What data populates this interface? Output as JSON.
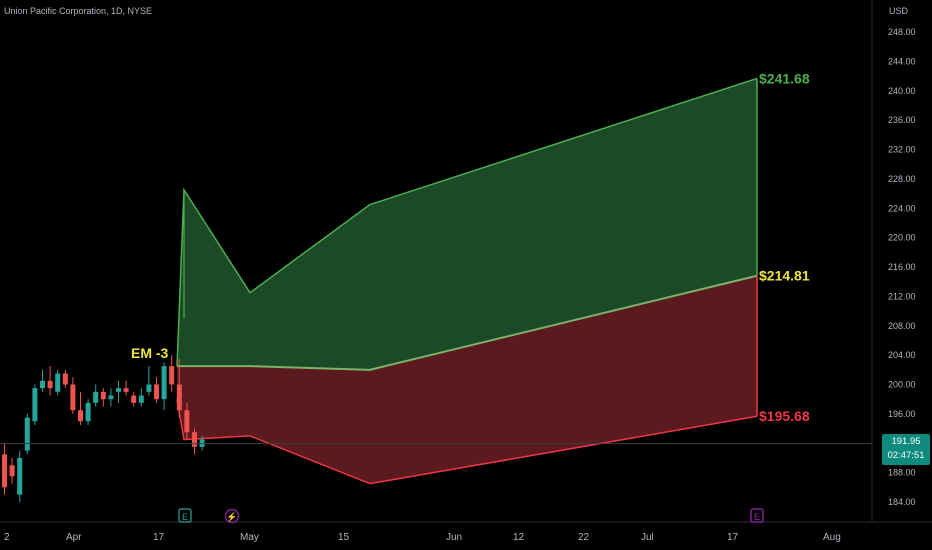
{
  "header": {
    "title": "Union Pacific Corporation, 1D, NYSE",
    "currency": "USD"
  },
  "price_axis": {
    "ticks": [
      "248.00",
      "244.00",
      "240.00",
      "236.00",
      "232.00",
      "228.00",
      "224.00",
      "220.00",
      "216.00",
      "212.00",
      "208.00",
      "204.00",
      "200.00",
      "196.00",
      "192.00",
      "188.00",
      "184.00"
    ]
  },
  "time_axis": {
    "labels": [
      "2",
      "Apr",
      "17",
      "May",
      "15",
      "Jun",
      "12",
      "22",
      "Jul",
      "17",
      "Aug"
    ]
  },
  "current_price": {
    "value": "191.95",
    "countdown": "02:47:51"
  },
  "annotations": {
    "em_label": "EM -3",
    "upper_label": "$241.68",
    "middle_label": "$214.81",
    "lower_label": "$195.68"
  },
  "event_markers": [
    {
      "letter": "E",
      "kind": "earnings"
    },
    {
      "letter": "⚡",
      "kind": "dividend"
    },
    {
      "letter": "E",
      "kind": "earnings-upcoming"
    }
  ],
  "colors": {
    "background": "#000000",
    "up": "#26a69a",
    "down": "#ef5350",
    "upper_band_fill": "#1d4a26",
    "upper_band_line": "#4caf50",
    "lower_band_fill": "#5b1a1e",
    "lower_band_line": "#f23645",
    "upper_label": "#4caf50",
    "middle_label": "#f0e442",
    "lower_label": "#f23645",
    "em_label": "#f0e442",
    "price_tag": "#0f8a7e"
  },
  "chart_data": {
    "type": "candlestick",
    "y_range": [
      182,
      251
    ],
    "candles": [
      {
        "o": 190.5,
        "h": 192,
        "l": 185,
        "c": 186,
        "dir": "down"
      },
      {
        "o": 189,
        "h": 190,
        "l": 186.5,
        "c": 187.5,
        "dir": "down"
      },
      {
        "o": 185,
        "h": 191,
        "l": 184,
        "c": 190,
        "dir": "up"
      },
      {
        "o": 191,
        "h": 196,
        "l": 190.5,
        "c": 195.5,
        "dir": "up"
      },
      {
        "o": 195,
        "h": 200,
        "l": 194.5,
        "c": 199.5,
        "dir": "up"
      },
      {
        "o": 199.5,
        "h": 202,
        "l": 199,
        "c": 200.5,
        "dir": "up"
      },
      {
        "o": 200.5,
        "h": 202.5,
        "l": 198.5,
        "c": 199.5,
        "dir": "down"
      },
      {
        "o": 199,
        "h": 202,
        "l": 198.5,
        "c": 201.5,
        "dir": "up"
      },
      {
        "o": 201.5,
        "h": 202,
        "l": 199.5,
        "c": 200,
        "dir": "down"
      },
      {
        "o": 200,
        "h": 201,
        "l": 196,
        "c": 196.5,
        "dir": "down"
      },
      {
        "o": 196.5,
        "h": 199,
        "l": 194.5,
        "c": 195,
        "dir": "down"
      },
      {
        "o": 195,
        "h": 198,
        "l": 194.5,
        "c": 197.5,
        "dir": "up"
      },
      {
        "o": 197.5,
        "h": 200,
        "l": 197,
        "c": 199,
        "dir": "up"
      },
      {
        "o": 199,
        "h": 199.5,
        "l": 197,
        "c": 198,
        "dir": "down"
      },
      {
        "o": 198,
        "h": 199.5,
        "l": 197,
        "c": 198.5,
        "dir": "up"
      },
      {
        "o": 199,
        "h": 200.5,
        "l": 197.5,
        "c": 199.5,
        "dir": "up"
      },
      {
        "o": 199.5,
        "h": 200.5,
        "l": 198.5,
        "c": 199,
        "dir": "down"
      },
      {
        "o": 198.5,
        "h": 199,
        "l": 197,
        "c": 197.5,
        "dir": "down"
      },
      {
        "o": 197.5,
        "h": 199.5,
        "l": 197,
        "c": 198.5,
        "dir": "up"
      },
      {
        "o": 199,
        "h": 202.5,
        "l": 198.5,
        "c": 200,
        "dir": "up"
      },
      {
        "o": 200,
        "h": 201,
        "l": 197.5,
        "c": 198,
        "dir": "down"
      },
      {
        "o": 198,
        "h": 203,
        "l": 196.5,
        "c": 202.5,
        "dir": "up"
      },
      {
        "o": 202.5,
        "h": 204,
        "l": 199,
        "c": 200,
        "dir": "down"
      },
      {
        "o": 200,
        "h": 203.5,
        "l": 195.5,
        "c": 196.5,
        "dir": "down"
      },
      {
        "o": 196.5,
        "h": 197.5,
        "l": 192.5,
        "c": 193.5,
        "dir": "down"
      },
      {
        "o": 193.5,
        "h": 194,
        "l": 190.5,
        "c": 191.5,
        "dir": "down"
      },
      {
        "o": 191.5,
        "h": 193,
        "l": 191,
        "c": 192.5,
        "dir": "up"
      }
    ],
    "bands": {
      "upper": [
        [
          0,
          202.5
        ],
        [
          1,
          226.5
        ],
        [
          2,
          212.5
        ],
        [
          3,
          224.5
        ],
        [
          4,
          241.68
        ]
      ],
      "middle": [
        [
          0,
          202.5
        ],
        [
          1,
          202.5
        ],
        [
          2,
          202.5
        ],
        [
          3,
          202
        ],
        [
          4,
          214.81
        ]
      ],
      "lower": [
        [
          0,
          198
        ],
        [
          1,
          192.5
        ],
        [
          2,
          193
        ],
        [
          3,
          186.5
        ],
        [
          4,
          195.68
        ]
      ]
    },
    "current_price": 191.95
  }
}
